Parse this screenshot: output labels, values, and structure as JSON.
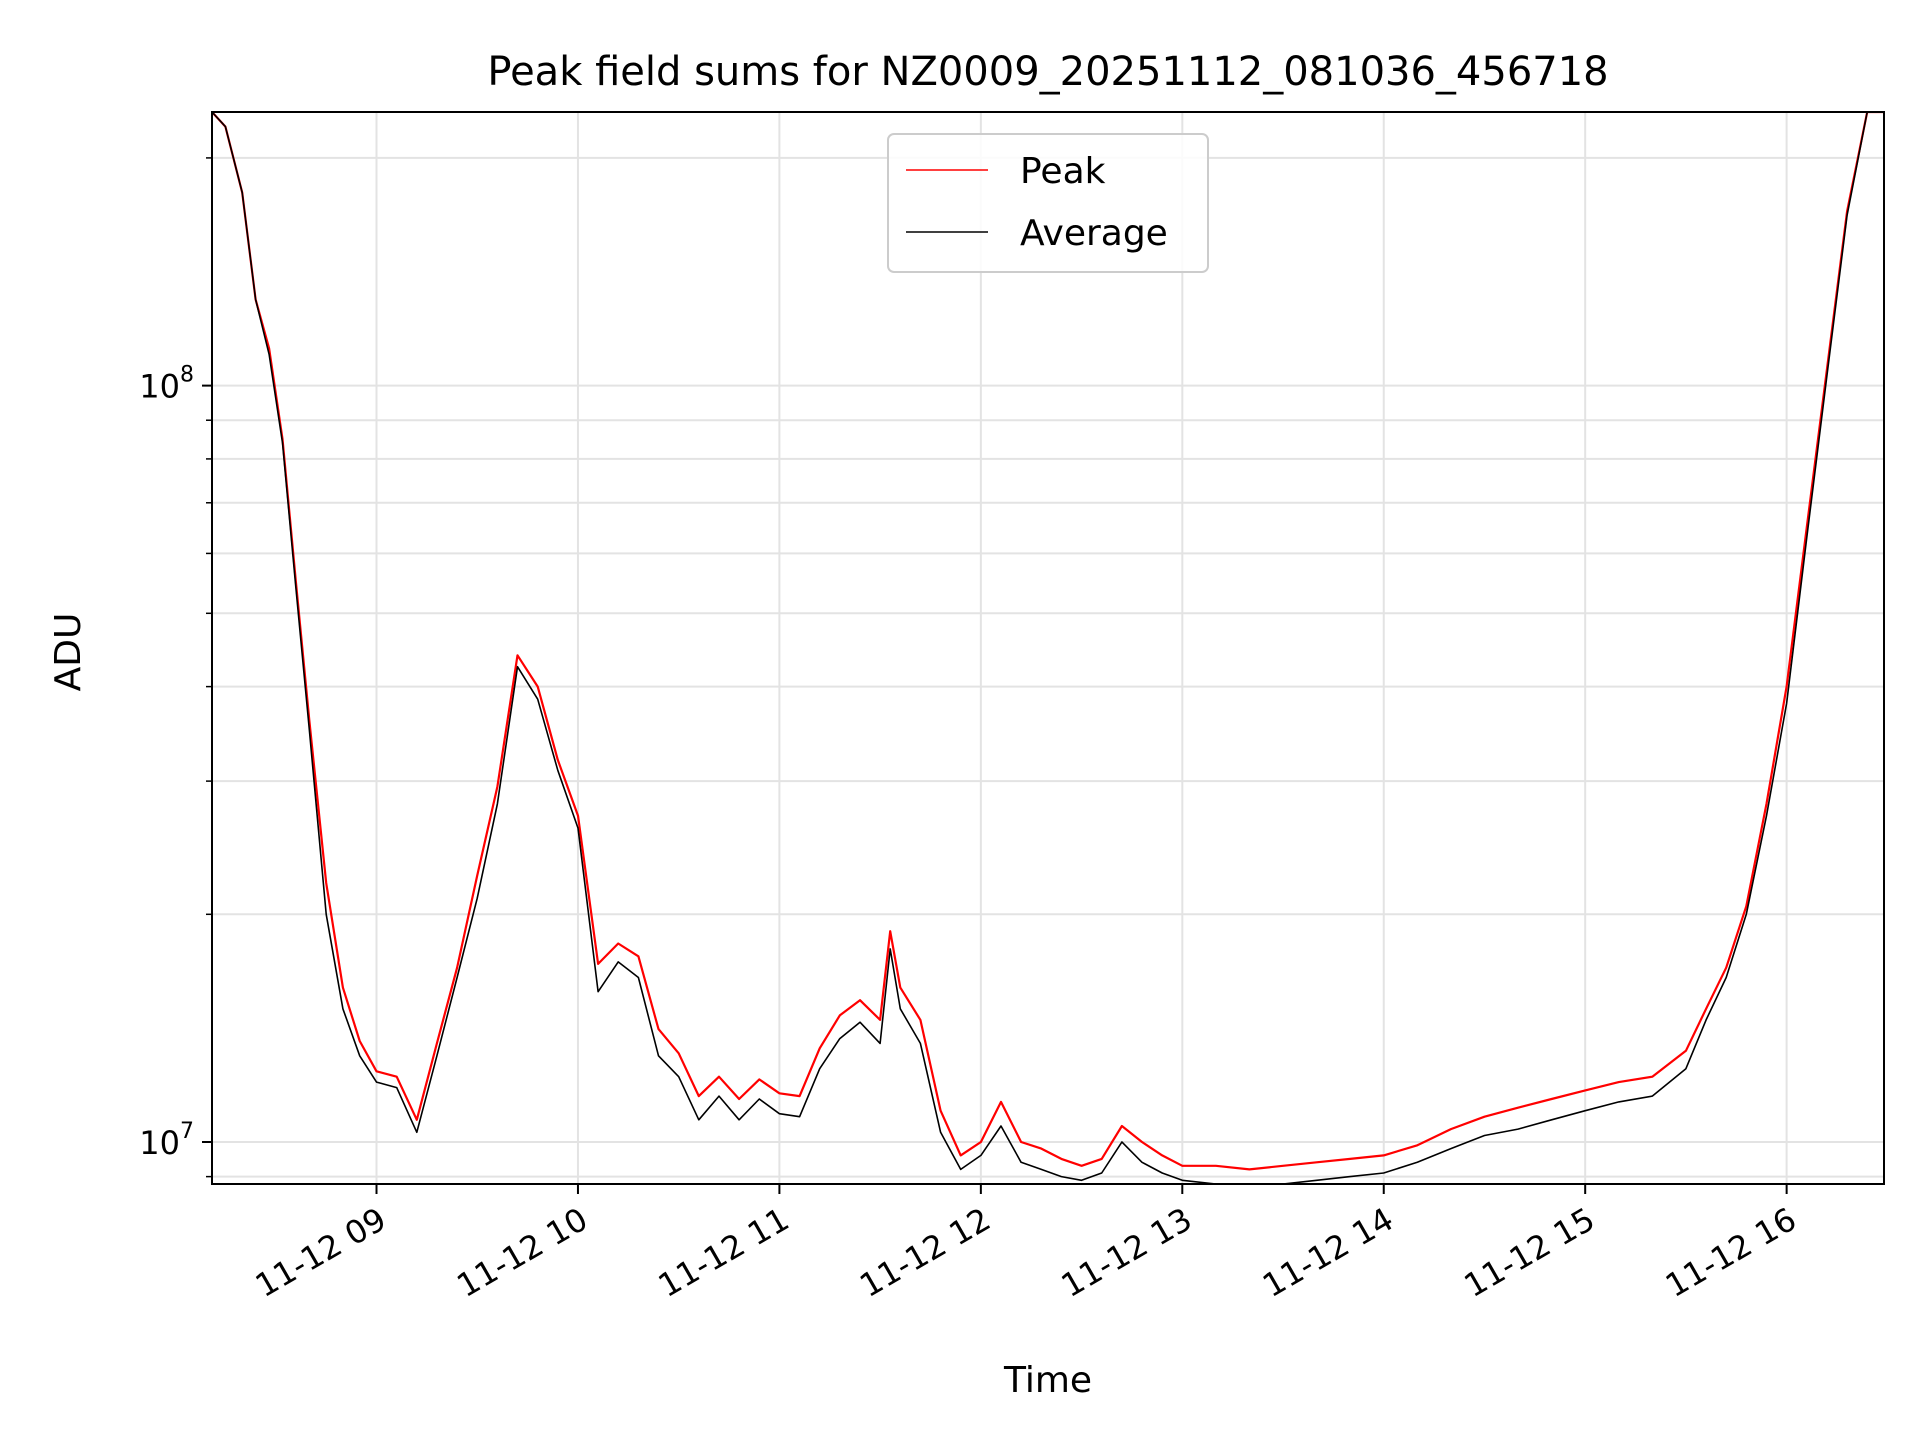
{
  "chart_data": {
    "type": "line",
    "title": "Peak field sums for NZ0009_20251112_081036_456718",
    "xlabel": "Time",
    "ylabel": "ADU",
    "y_scale": "log",
    "ylim": [
      8800000,
      230000000
    ],
    "xlim": [
      "2025-11-12 08:11",
      "2025-11-12 16:29"
    ],
    "x_ticks": [
      {
        "value": "2025-11-12 09:00",
        "label": "11-12 09"
      },
      {
        "value": "2025-11-12 10:00",
        "label": "11-12 10"
      },
      {
        "value": "2025-11-12 11:00",
        "label": "11-12 11"
      },
      {
        "value": "2025-11-12 12:00",
        "label": "11-12 12"
      },
      {
        "value": "2025-11-12 13:00",
        "label": "11-12 13"
      },
      {
        "value": "2025-11-12 14:00",
        "label": "11-12 14"
      },
      {
        "value": "2025-11-12 15:00",
        "label": "11-12 15"
      },
      {
        "value": "2025-11-12 16:00",
        "label": "11-12 16"
      }
    ],
    "y_major_ticks": [
      {
        "value": 10000000,
        "base": "10",
        "exp": "7"
      },
      {
        "value": 100000000,
        "base": "10",
        "exp": "8"
      }
    ],
    "y_minor_ticks": [
      9000000,
      20000000,
      30000000,
      40000000,
      50000000,
      60000000,
      70000000,
      80000000,
      90000000,
      200000000
    ],
    "grid": true,
    "legend_position": "top-center",
    "x": [
      "2025-11-12 08:11",
      "2025-11-12 08:15",
      "2025-11-12 08:20",
      "2025-11-12 08:24",
      "2025-11-12 08:28",
      "2025-11-12 08:32",
      "2025-11-12 08:36",
      "2025-11-12 08:40",
      "2025-11-12 08:45",
      "2025-11-12 08:50",
      "2025-11-12 08:55",
      "2025-11-12 09:00",
      "2025-11-12 09:06",
      "2025-11-12 09:12",
      "2025-11-12 09:18",
      "2025-11-12 09:24",
      "2025-11-12 09:30",
      "2025-11-12 09:36",
      "2025-11-12 09:42",
      "2025-11-12 09:48",
      "2025-11-12 09:54",
      "2025-11-12 10:00",
      "2025-11-12 10:06",
      "2025-11-12 10:12",
      "2025-11-12 10:18",
      "2025-11-12 10:24",
      "2025-11-12 10:30",
      "2025-11-12 10:36",
      "2025-11-12 10:42",
      "2025-11-12 10:48",
      "2025-11-12 10:54",
      "2025-11-12 11:00",
      "2025-11-12 11:06",
      "2025-11-12 11:12",
      "2025-11-12 11:18",
      "2025-11-12 11:24",
      "2025-11-12 11:30",
      "2025-11-12 11:33",
      "2025-11-12 11:36",
      "2025-11-12 11:42",
      "2025-11-12 11:48",
      "2025-11-12 11:54",
      "2025-11-12 12:00",
      "2025-11-12 12:06",
      "2025-11-12 12:12",
      "2025-11-12 12:18",
      "2025-11-12 12:24",
      "2025-11-12 12:30",
      "2025-11-12 12:36",
      "2025-11-12 12:42",
      "2025-11-12 12:48",
      "2025-11-12 12:54",
      "2025-11-12 13:00",
      "2025-11-12 13:10",
      "2025-11-12 13:20",
      "2025-11-12 13:30",
      "2025-11-12 13:40",
      "2025-11-12 13:50",
      "2025-11-12 14:00",
      "2025-11-12 14:10",
      "2025-11-12 14:20",
      "2025-11-12 14:30",
      "2025-11-12 14:40",
      "2025-11-12 14:50",
      "2025-11-12 15:00",
      "2025-11-12 15:10",
      "2025-11-12 15:20",
      "2025-11-12 15:30",
      "2025-11-12 15:36",
      "2025-11-12 15:42",
      "2025-11-12 15:48",
      "2025-11-12 15:54",
      "2025-11-12 16:00",
      "2025-11-12 16:06",
      "2025-11-12 16:12",
      "2025-11-12 16:18",
      "2025-11-12 16:24",
      "2025-11-12 16:29"
    ],
    "series": [
      {
        "name": "Peak",
        "color": "#ff0000",
        "values": [
          230000000,
          220000000,
          180000000,
          130000000,
          112000000,
          85000000,
          55000000,
          36000000,
          22000000,
          16000000,
          13600000,
          12400000,
          12200000,
          10700000,
          13500000,
          17000000,
          22500000,
          29500000,
          44000000,
          40000000,
          32000000,
          27000000,
          17200000,
          18300000,
          17600000,
          14100000,
          13100000,
          11500000,
          12200000,
          11400000,
          12100000,
          11600000,
          11500000,
          13300000,
          14700000,
          15400000,
          14500000,
          19000000,
          16000000,
          14500000,
          11000000,
          9600000,
          10000000,
          11300000,
          10000000,
          9800000,
          9500000,
          9300000,
          9500000,
          10500000,
          10000000,
          9600000,
          9300000,
          9300000,
          9200000,
          9300000,
          9400000,
          9500000,
          9600000,
          9900000,
          10400000,
          10800000,
          11100000,
          11400000,
          11700000,
          12000000,
          12200000,
          13200000,
          15000000,
          17000000,
          20500000,
          28000000,
          40000000,
          65000000,
          105000000,
          170000000,
          230000000,
          230000000
        ]
      },
      {
        "name": "Average",
        "color": "#000000",
        "values": [
          230000000,
          220000000,
          180000000,
          130000000,
          110000000,
          84000000,
          54000000,
          35000000,
          20000000,
          15000000,
          13000000,
          12000000,
          11800000,
          10300000,
          13000000,
          16500000,
          21000000,
          28000000,
          42500000,
          38500000,
          31000000,
          26000000,
          15800000,
          17300000,
          16500000,
          13000000,
          12200000,
          10700000,
          11500000,
          10700000,
          11400000,
          10900000,
          10800000,
          12500000,
          13700000,
          14400000,
          13500000,
          18000000,
          15000000,
          13500000,
          10300000,
          9200000,
          9600000,
          10500000,
          9400000,
          9200000,
          9000000,
          8900000,
          9100000,
          10000000,
          9400000,
          9100000,
          8900000,
          8800000,
          8700000,
          8800000,
          8900000,
          9000000,
          9100000,
          9400000,
          9800000,
          10200000,
          10400000,
          10700000,
          11000000,
          11300000,
          11500000,
          12500000,
          14500000,
          16500000,
          20000000,
          27000000,
          38000000,
          63000000,
          103000000,
          168000000,
          230000000,
          230000000
        ]
      }
    ]
  }
}
